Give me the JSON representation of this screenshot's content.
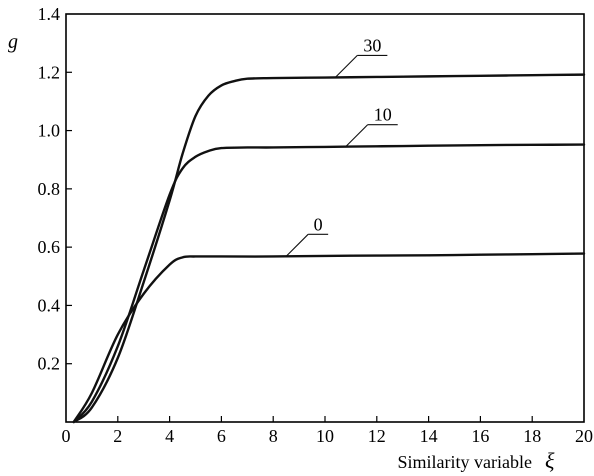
{
  "chart_data": {
    "type": "line",
    "xlabel": "Similarity variable",
    "xlabel_symbol": "ξ",
    "ylabel": "g",
    "xlim": [
      0,
      20
    ],
    "ylim": [
      0,
      1.4
    ],
    "x_ticks": [
      0,
      2,
      4,
      6,
      8,
      10,
      12,
      14,
      16,
      18,
      20
    ],
    "x_tick_labels": [
      "0",
      "2",
      "4",
      "6",
      "8",
      "10",
      "12",
      "14",
      "16",
      "18",
      "20"
    ],
    "y_ticks": [
      0.2,
      0.4,
      0.6,
      0.8,
      1.0,
      1.2,
      1.4
    ],
    "y_tick_labels": [
      "0.2",
      "0.4",
      "0.6",
      "0.8",
      "1.0",
      "1.2",
      "1.4"
    ],
    "grid": false,
    "legend": "none",
    "series": [
      {
        "name": "0",
        "label_at": 8.5,
        "x": [
          0.3,
          1,
          2,
          3,
          4,
          4.5,
          5,
          6,
          8,
          10,
          12,
          14,
          16,
          18,
          20
        ],
        "y": [
          0.0,
          0.1,
          0.3,
          0.44,
          0.54,
          0.565,
          0.568,
          0.568,
          0.568,
          0.57,
          0.571,
          0.572,
          0.574,
          0.576,
          0.578
        ]
      },
      {
        "name": "10",
        "label_at": 10.8,
        "x": [
          0.3,
          1,
          2,
          3,
          4,
          4.5,
          5,
          5.5,
          6,
          7,
          8,
          10,
          12,
          14,
          16,
          18,
          20
        ],
        "y": [
          0.0,
          0.07,
          0.26,
          0.52,
          0.78,
          0.87,
          0.91,
          0.93,
          0.94,
          0.942,
          0.942,
          0.944,
          0.946,
          0.948,
          0.95,
          0.951,
          0.952
        ]
      },
      {
        "name": "30",
        "label_at": 10.4,
        "x": [
          0.3,
          1,
          2,
          3,
          4,
          4.5,
          5,
          5.5,
          6,
          6.5,
          7,
          8,
          10,
          12,
          14,
          16,
          18,
          20
        ],
        "y": [
          0.0,
          0.05,
          0.22,
          0.48,
          0.76,
          0.92,
          1.05,
          1.12,
          1.155,
          1.17,
          1.178,
          1.18,
          1.182,
          1.184,
          1.186,
          1.188,
          1.19,
          1.192
        ]
      }
    ]
  }
}
